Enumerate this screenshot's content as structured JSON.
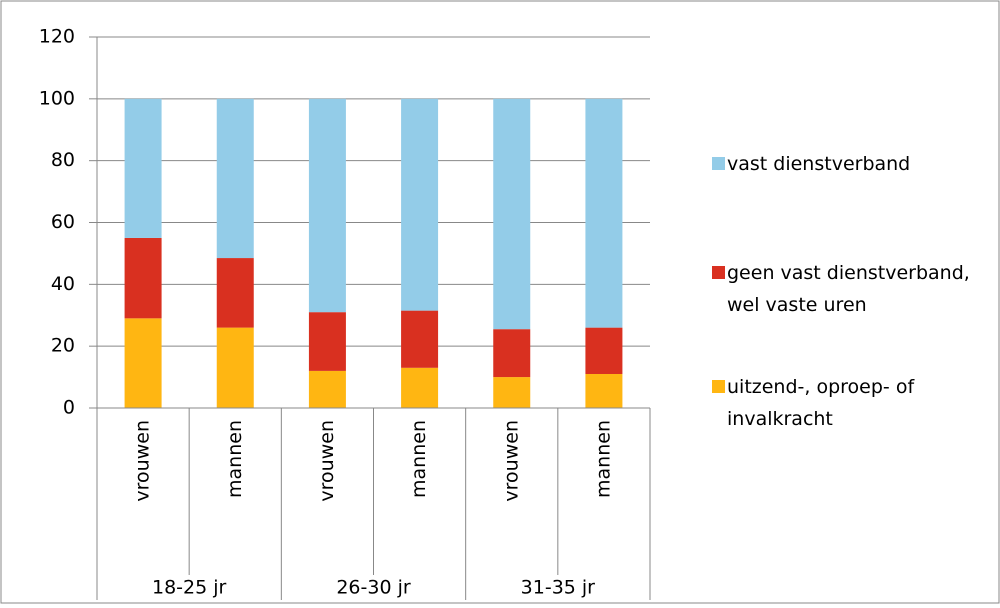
{
  "chart_data": {
    "type": "stacked-bar",
    "categories": [
      "vrouwen",
      "mannen",
      "vrouwen",
      "mannen",
      "vrouwen",
      "mannen"
    ],
    "groups": [
      "18-25 jr",
      "26-30 jr",
      "31-35 jr"
    ],
    "series": [
      {
        "name": "uitzend-, oproep- of invalkracht",
        "color": "#ffb612",
        "values": [
          29,
          26,
          12,
          13,
          10,
          11
        ]
      },
      {
        "name": "geen vast dienstverband, wel vaste uren",
        "color": "#d93020",
        "values": [
          26,
          22.5,
          19,
          18.5,
          15.5,
          15
        ]
      },
      {
        "name": "vast dienstverband",
        "color": "#93cce8",
        "values": [
          45,
          51.5,
          69,
          68.5,
          74.5,
          74
        ]
      }
    ],
    "ylim": [
      0,
      120
    ],
    "yticks": [
      0,
      20,
      40,
      60,
      80,
      100,
      120
    ],
    "grid": true,
    "legend": "right"
  }
}
